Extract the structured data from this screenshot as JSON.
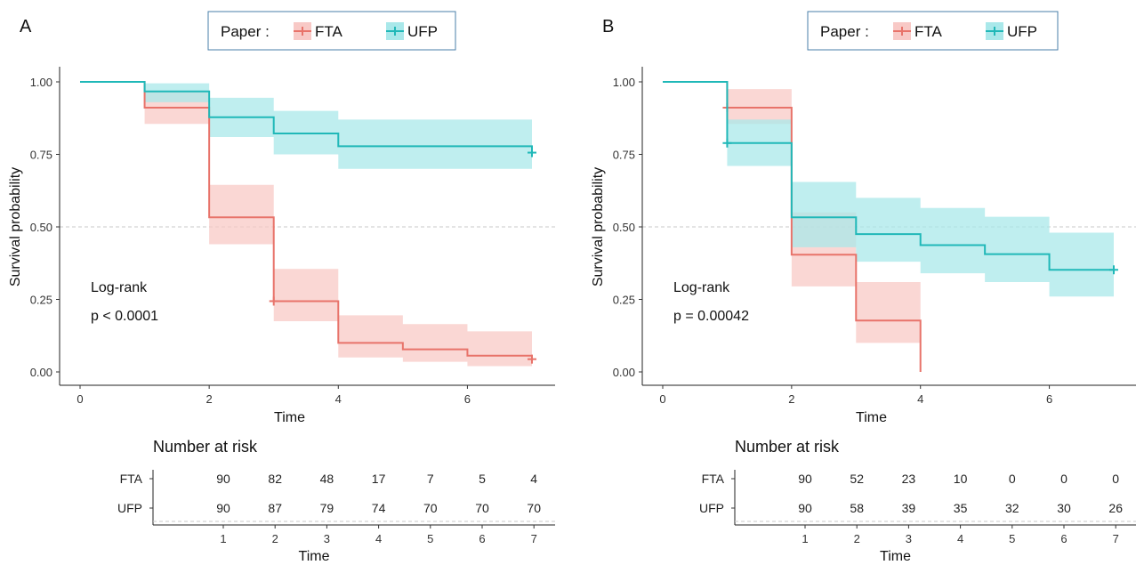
{
  "chart_data": [
    {
      "type": "line",
      "panel_label": "A",
      "legend_title": "Paper :",
      "legend_placement": "top",
      "xlabel": "Time",
      "ylabel": "Survival probability",
      "xlim": [
        0,
        7
      ],
      "ylim": [
        0,
        1
      ],
      "x_ticks": [
        "0",
        "2",
        "4",
        "6"
      ],
      "y_ticks": [
        "0.00",
        "0.25",
        "0.50",
        "0.75",
        "1.00"
      ],
      "reference_line": 0.5,
      "annotation": [
        "Log-rank",
        "p < 0.0001"
      ],
      "series": [
        {
          "name": "FTA",
          "color": "#e8736a",
          "band_color": "#f8c9c6",
          "x": [
            0,
            1,
            2,
            3,
            4,
            5,
            6,
            7
          ],
          "y": [
            1.0,
            0.911,
            0.533,
            0.244,
            0.1,
            0.078,
            0.056,
            0.044
          ],
          "lower": [
            1.0,
            0.855,
            0.44,
            0.175,
            0.05,
            0.035,
            0.02,
            0.015
          ],
          "upper": [
            1.0,
            0.97,
            0.645,
            0.355,
            0.195,
            0.165,
            0.14,
            0.12
          ],
          "censor_x": [
            3,
            7
          ]
        },
        {
          "name": "UFP",
          "color": "#20b8b8",
          "band_color": "#a9e8ea",
          "x": [
            0,
            1,
            2,
            3,
            4,
            5,
            6,
            7
          ],
          "y": [
            1.0,
            0.967,
            0.878,
            0.822,
            0.778,
            0.778,
            0.778,
            0.756
          ],
          "lower": [
            1.0,
            0.93,
            0.81,
            0.75,
            0.7,
            0.7,
            0.7,
            0.7
          ],
          "upper": [
            1.0,
            0.995,
            0.945,
            0.9,
            0.87,
            0.87,
            0.87,
            0.87
          ],
          "censor_x": [
            7
          ]
        }
      ],
      "risk_table": {
        "title": "Number at risk",
        "xlabel": "Time",
        "times": [
          "1",
          "2",
          "3",
          "4",
          "5",
          "6",
          "7"
        ],
        "rows": [
          {
            "label": "FTA",
            "color": "#c8551e",
            "values": [
              "90",
              "82",
              "48",
              "17",
              "7",
              "5",
              "4"
            ]
          },
          {
            "label": "UFP",
            "color": "#1aa8b0",
            "values": [
              "90",
              "87",
              "79",
              "74",
              "70",
              "70",
              "70"
            ]
          }
        ]
      }
    },
    {
      "type": "line",
      "panel_label": "B",
      "legend_title": "Paper :",
      "legend_placement": "top",
      "xlabel": "Time",
      "ylabel": "Survival probability",
      "xlim": [
        0,
        7
      ],
      "ylim": [
        0,
        1
      ],
      "x_ticks": [
        "0",
        "2",
        "4",
        "6"
      ],
      "y_ticks": [
        "0.00",
        "0.25",
        "0.50",
        "0.75",
        "1.00"
      ],
      "reference_line": 0.5,
      "annotation": [
        "Log-rank",
        "p = 0.00042"
      ],
      "series": [
        {
          "name": "FTA",
          "color": "#e8736a",
          "band_color": "#f8c9c6",
          "x": [
            0,
            1,
            2,
            3,
            4
          ],
          "y": [
            1.0,
            0.911,
            0.404,
            0.177,
            0.0
          ],
          "lower": [
            1.0,
            0.855,
            0.295,
            0.1,
            0.0
          ],
          "upper": [
            1.0,
            0.975,
            0.55,
            0.31,
            0.0
          ],
          "censor_x": [
            1
          ]
        },
        {
          "name": "UFP",
          "color": "#20b8b8",
          "band_color": "#a9e8ea",
          "x": [
            0,
            1,
            2,
            3,
            4,
            5,
            6,
            7
          ],
          "y": [
            1.0,
            0.789,
            0.533,
            0.475,
            0.437,
            0.406,
            0.352,
            0.352
          ],
          "lower": [
            1.0,
            0.71,
            0.43,
            0.38,
            0.34,
            0.31,
            0.26,
            0.26
          ],
          "upper": [
            1.0,
            0.87,
            0.655,
            0.6,
            0.565,
            0.535,
            0.48,
            0.48
          ],
          "censor_x": [
            1,
            7
          ]
        }
      ],
      "risk_table": {
        "title": "Number at risk",
        "xlabel": "Time",
        "times": [
          "1",
          "2",
          "3",
          "4",
          "5",
          "6",
          "7"
        ],
        "rows": [
          {
            "label": "FTA",
            "color": "#c8551e",
            "values": [
              "90",
              "52",
              "23",
              "10",
              "0",
              "0",
              "0"
            ]
          },
          {
            "label": "UFP",
            "color": "#1aa8b0",
            "values": [
              "90",
              "58",
              "39",
              "35",
              "32",
              "30",
              "26"
            ]
          }
        ]
      }
    }
  ]
}
